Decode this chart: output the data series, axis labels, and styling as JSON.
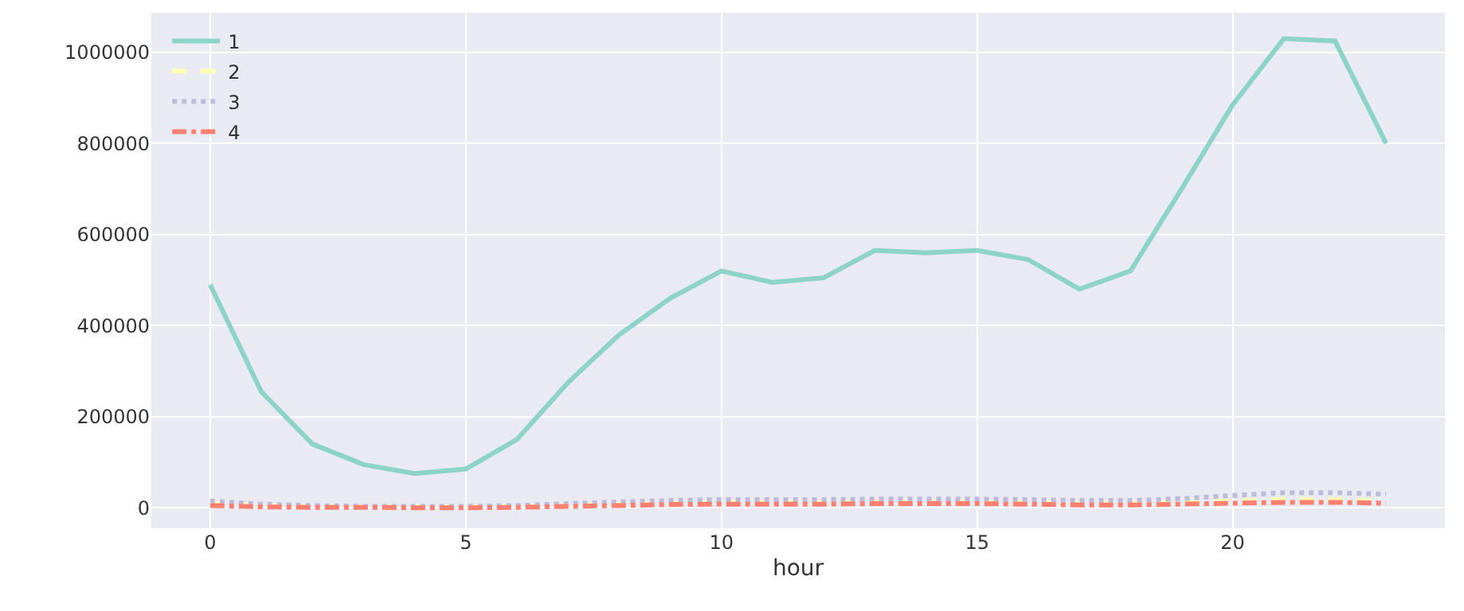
{
  "chart_data": {
    "type": "line",
    "xlabel": "hour",
    "x": [
      0,
      1,
      2,
      3,
      4,
      5,
      6,
      7,
      8,
      9,
      10,
      11,
      12,
      13,
      14,
      15,
      16,
      17,
      18,
      19,
      20,
      21,
      22,
      23
    ],
    "series": [
      {
        "name": "1",
        "color": "#8dd3c7",
        "line_style": "solid",
        "values": [
          490000,
          255000,
          140000,
          95000,
          75000,
          85000,
          150000,
          275000,
          380000,
          460000,
          520000,
          495000,
          505000,
          565000,
          560000,
          565000,
          545000,
          480000,
          520000,
          700000,
          885000,
          1030000,
          1025000,
          800000
        ]
      },
      {
        "name": "2",
        "color": "#ffffb3",
        "line_style": "dashed",
        "values": [
          10000,
          5000,
          3000,
          2000,
          2000,
          2000,
          3000,
          5000,
          8000,
          10000,
          12000,
          12000,
          12000,
          13000,
          13000,
          13000,
          12000,
          10000,
          10000,
          12000,
          15000,
          18000,
          18000,
          15000
        ]
      },
      {
        "name": "3",
        "color": "#bebada",
        "line_style": "dotted",
        "values": [
          15000,
          8000,
          5000,
          3000,
          3000,
          3000,
          5000,
          9000,
          13000,
          16000,
          18000,
          18000,
          18000,
          19000,
          19000,
          19000,
          18000,
          16000,
          16000,
          20000,
          27000,
          33000,
          33000,
          30000
        ]
      },
      {
        "name": "4",
        "color": "#fb8072",
        "line_style": "dashdot",
        "values": [
          5000,
          2000,
          1000,
          1000,
          0,
          0,
          1000,
          3000,
          5000,
          7000,
          8000,
          8000,
          8000,
          9000,
          9000,
          9000,
          8000,
          6000,
          6000,
          8000,
          10000,
          12000,
          12000,
          10000
        ]
      }
    ],
    "xlim": [
      -1.15,
      24.15
    ],
    "xticks": [
      0,
      5,
      10,
      15,
      20
    ],
    "ylim": [
      -45000,
      1087000
    ],
    "yticks": [
      0,
      200000,
      400000,
      600000,
      800000,
      1000000
    ],
    "grid": true,
    "legend": "top left"
  }
}
